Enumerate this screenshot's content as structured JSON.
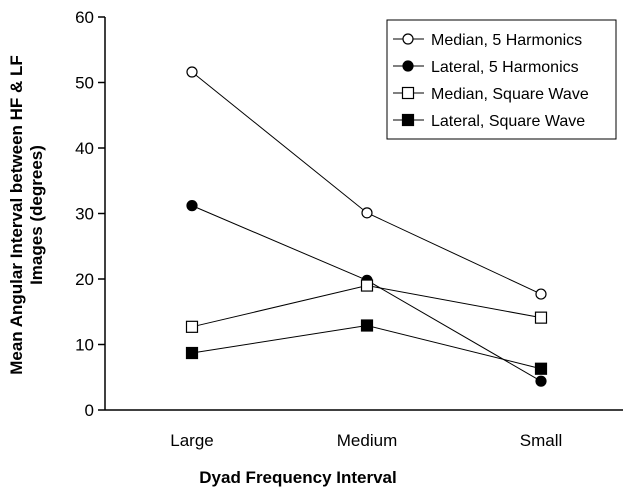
{
  "chart_data": {
    "type": "line",
    "categories": [
      "Large",
      "Medium",
      "Small"
    ],
    "xlabel": "Dyad Frequency Interval",
    "ylabel_lines": [
      "Mean Angular Interval between HF & LF",
      "Images (degrees)"
    ],
    "ylim": [
      0,
      60
    ],
    "yticks": [
      0,
      10,
      20,
      30,
      40,
      50,
      60
    ],
    "grid": false,
    "legend_position": "top-right",
    "series": [
      {
        "name": "Median, 5 Harmonics",
        "marker": "circle",
        "filled": false,
        "values": [
          51.6,
          30.1,
          17.7
        ]
      },
      {
        "name": "Lateral, 5 Harmonics",
        "marker": "circle",
        "filled": true,
        "values": [
          31.2,
          19.8,
          4.4
        ]
      },
      {
        "name": "Median, Square Wave",
        "marker": "square",
        "filled": false,
        "values": [
          12.7,
          19.0,
          14.1
        ]
      },
      {
        "name": "Lateral, Square Wave",
        "marker": "square",
        "filled": true,
        "values": [
          8.7,
          12.9,
          6.3
        ]
      }
    ],
    "colors": {
      "line": "#000000",
      "marker_fill": "#000000",
      "open_fill": "#ffffff"
    }
  }
}
